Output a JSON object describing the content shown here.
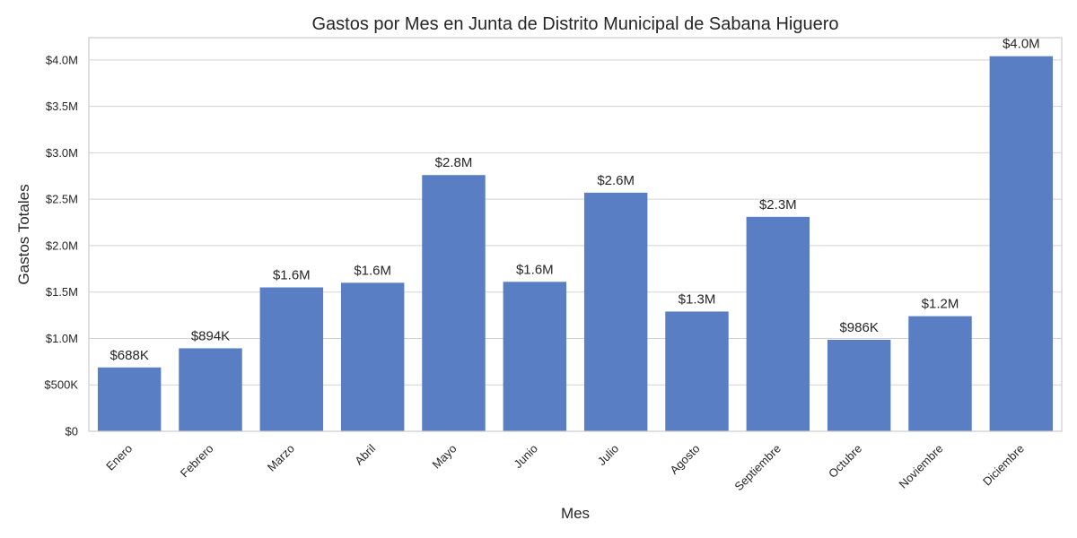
{
  "chart_data": {
    "type": "bar",
    "title": "Gastos por Mes en Junta de Distrito Municipal de Sabana Higuero",
    "xlabel": "Mes",
    "ylabel": "Gastos Totales",
    "categories": [
      "Enero",
      "Febrero",
      "Marzo",
      "Abril",
      "Mayo",
      "Junio",
      "Julio",
      "Agosto",
      "Septiembre",
      "Octubre",
      "Noviembre",
      "Diciembre"
    ],
    "values": [
      688000,
      894000,
      1550000,
      1600000,
      2760000,
      1610000,
      2570000,
      1290000,
      2310000,
      986000,
      1240000,
      4040000
    ],
    "value_labels": [
      "$688K",
      "$894K",
      "$1.6M",
      "$1.6M",
      "$2.8M",
      "$1.6M",
      "$2.6M",
      "$1.3M",
      "$2.3M",
      "$986K",
      "$1.2M",
      "$4.0M"
    ],
    "ylim": [
      0,
      4240000
    ],
    "yticks": [
      0,
      500000,
      1000000,
      1500000,
      2000000,
      2500000,
      3000000,
      3500000,
      4000000
    ],
    "ytick_labels": [
      "$0",
      "$500K",
      "$1.0M",
      "$1.5M",
      "$2.0M",
      "$2.5M",
      "$3.0M",
      "$3.5M",
      "$4.0M"
    ],
    "grid": true,
    "bar_color": "#5a7ec4",
    "xtick_rotation": -45
  }
}
